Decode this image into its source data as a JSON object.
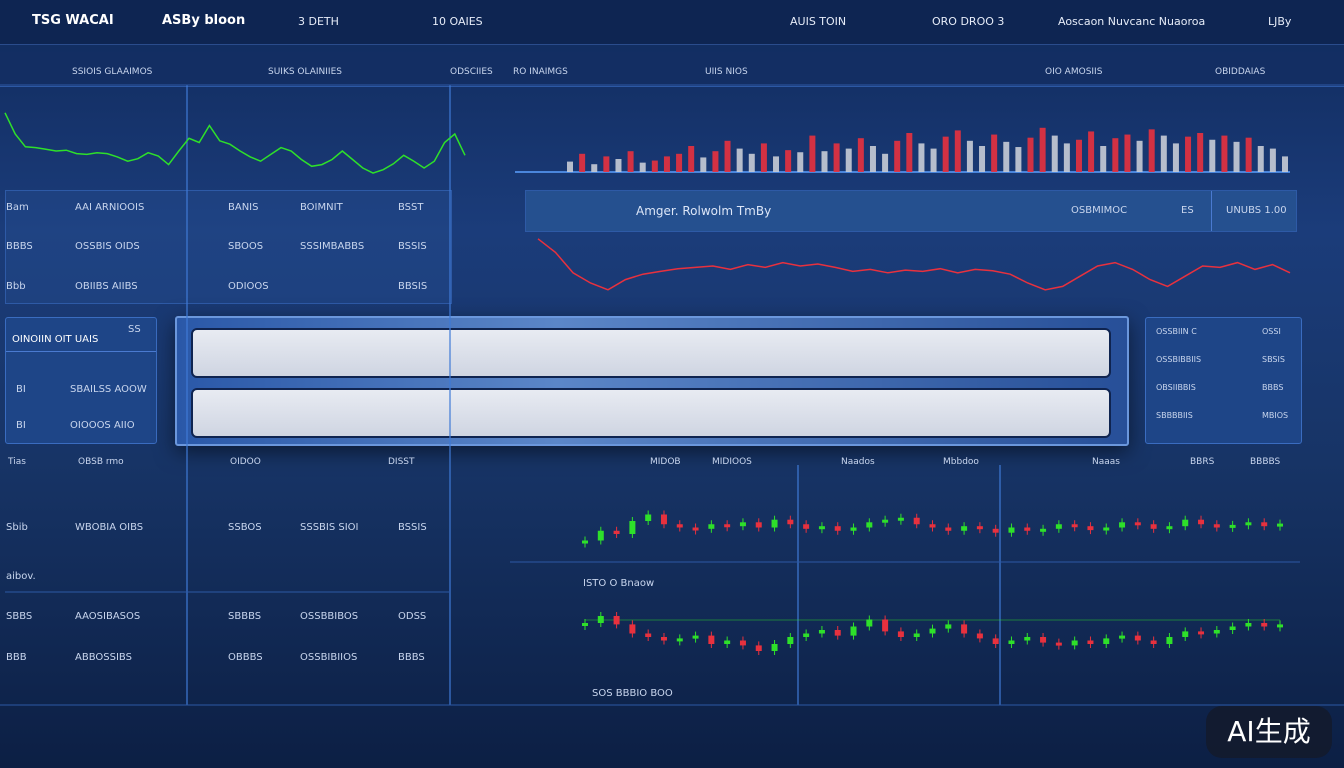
{
  "header": {
    "brand": "TSG WACAI",
    "account": "ASBy bloon",
    "items": [
      "3  DETH",
      "10  OAIES",
      "AUIS TOIN",
      "ORO DROO 3",
      "Aoscaon Nuvcanc Nuaoroa",
      "LJBy"
    ]
  },
  "toolbar": [
    "SSIOIS GLAAIMOS",
    "SUIKS OLAINIIES",
    "ODSCIIES",
    "RO INAIMGS",
    "UIIS NIOS",
    "OIO AMOSIIS",
    "OBIDDAIAS"
  ],
  "top_table": {
    "rows": [
      [
        "Bam",
        "AAI ARNIOOIS",
        "BANIS",
        "BOIMNIT",
        "BSST"
      ],
      [
        "BBBS",
        "OSSBIS OIDS",
        "SBOOS",
        "SSSIMBABBS",
        "BSSIS"
      ],
      [
        "Bbb",
        "OBIIBS AIIBS",
        "ODIOOS",
        "",
        "BBSIS"
      ]
    ]
  },
  "chart_header": {
    "title": "Amger. Rolwolm TmBy",
    "label": "OSBMIMOC",
    "unit": "ES",
    "value": "UNUBS 1.00"
  },
  "left_box": {
    "title": "OINOIIN OIT UAIS",
    "badge": "SS",
    "rows": [
      [
        "BI",
        "SBAILSS AOOW"
      ],
      [
        "BI",
        "OIOOOS AIIO"
      ]
    ]
  },
  "right_box": {
    "rows": [
      [
        "OSSBIIN C",
        "OSSI"
      ],
      [
        "OSSBIBBIIS",
        "SBSIS"
      ],
      [
        "OBSIIBBIS",
        "BBBS"
      ],
      [
        "SBBBBIIS",
        "MBIOS"
      ]
    ]
  },
  "lower_labels": [
    "Tias",
    "OBSB rmo",
    "OIDOO",
    "DISST",
    "MIDOB",
    "MIDIOOS",
    "Naados",
    "Mbbdoo",
    "Naaas",
    "BBRS",
    "BBBBS"
  ],
  "lower_table": {
    "rows": [
      [
        "Sbib",
        "WBOBIA OIBS",
        "SSBOS",
        "SSSBIS SIOI",
        "BSSIS"
      ],
      [
        "aibov."
      ],
      [
        "SBBS",
        "AAOSIBASOS",
        "SBBBS",
        "OSSBBIBOS",
        "ODSS"
      ],
      [
        "BBB",
        "ABBOSSIBS",
        "OBBBS",
        "OSSBIBIIOS",
        "BBBS"
      ]
    ]
  },
  "lower_chart_label": "ISTO O Bnaow",
  "footer_label": "SOS BBBIO BOO",
  "watermark": "AI生成",
  "charts": [
    {
      "type": "line",
      "color": "#2ee02a",
      "ylim": [
        0,
        100
      ],
      "values": [
        85,
        60,
        45,
        44,
        42,
        40,
        41,
        37,
        36,
        38,
        37,
        33,
        28,
        31,
        38,
        34,
        24,
        40,
        55,
        50,
        70,
        52,
        48,
        40,
        33,
        28,
        36,
        44,
        40,
        30,
        22,
        24,
        30,
        40,
        30,
        20,
        14,
        18,
        25,
        35,
        28,
        20,
        28,
        50,
        60,
        35
      ]
    },
    {
      "type": "bars",
      "colors": [
        "#e8313e",
        "#c8ccd6"
      ],
      "ylim": [
        0,
        100
      ],
      "values": [
        20,
        35,
        15,
        30,
        25,
        40,
        18,
        22,
        30,
        35,
        50,
        28,
        40,
        60,
        45,
        35,
        55,
        30,
        42,
        38,
        70,
        40,
        55,
        45,
        65,
        50,
        35,
        60,
        75,
        55,
        45,
        68,
        80,
        60,
        50,
        72,
        58,
        48,
        66,
        85,
        70,
        55,
        62,
        78,
        50,
        65,
        72,
        60,
        82,
        70,
        55,
        68,
        75,
        62,
        70,
        58,
        66,
        50,
        45,
        30
      ]
    },
    {
      "type": "line",
      "color": "#e8313e",
      "ylim": [
        0,
        100
      ],
      "values": [
        90,
        70,
        40,
        25,
        15,
        30,
        38,
        42,
        46,
        48,
        50,
        45,
        52,
        48,
        55,
        50,
        53,
        48,
        42,
        45,
        40,
        44,
        42,
        46,
        40,
        45,
        43,
        38,
        25,
        15,
        20,
        35,
        50,
        55,
        45,
        30,
        20,
        35,
        50,
        48,
        55,
        45,
        52,
        40
      ]
    },
    {
      "type": "candles",
      "colors": [
        "#2ee02a",
        "#e8313e"
      ],
      "ylim": [
        0,
        100
      ],
      "values": [
        30,
        45,
        40,
        60,
        70,
        55,
        50,
        48,
        55,
        52,
        58,
        50,
        62,
        55,
        48,
        52,
        45,
        50,
        58,
        62,
        65,
        55,
        50,
        45,
        52,
        48,
        42,
        50,
        45,
        48,
        55,
        52,
        46,
        50,
        58,
        55,
        48,
        52,
        62,
        55,
        50,
        54,
        58,
        52,
        56
      ]
    },
    {
      "type": "candles",
      "colors": [
        "#2ee02a",
        "#e8313e"
      ],
      "ylim": [
        0,
        100
      ],
      "values": [
        60,
        70,
        58,
        45,
        40,
        35,
        38,
        42,
        30,
        35,
        28,
        20,
        30,
        40,
        45,
        50,
        42,
        55,
        65,
        48,
        40,
        45,
        52,
        58,
        45,
        38,
        30,
        35,
        40,
        32,
        28,
        35,
        30,
        38,
        42,
        35,
        30,
        40,
        48,
        45,
        50,
        55,
        60,
        55,
        58
      ]
    }
  ]
}
